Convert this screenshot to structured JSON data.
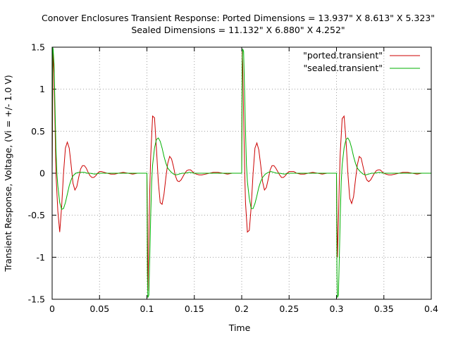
{
  "chart_data": {
    "type": "line",
    "title_line1": "Conover Enclosures Transient Response: Ported Dimensions = 13.937\" X 8.613\" X 5.323\"",
    "title_line2": "Sealed Dimensions = 11.132\" X 6.880\" X 4.252\"",
    "xlabel": "Time",
    "ylabel": "Transient Response, Voltage, (Vi = +/- 1.0 V)",
    "xlim": [
      0,
      0.4
    ],
    "ylim": [
      -1.5,
      1.5
    ],
    "x_tick_labels": [
      "0",
      "0.05",
      "0.1",
      "0.15",
      "0.2",
      "0.25",
      "0.3",
      "0.35",
      "0.4"
    ],
    "x_tick_values": [
      0,
      0.05,
      0.1,
      0.15,
      0.2,
      0.25,
      0.3,
      0.35,
      0.4
    ],
    "y_tick_labels": [
      "1.5",
      "1",
      "0.5",
      "0",
      "-0.5",
      "-1",
      "-1.5"
    ],
    "y_tick_values": [
      1.5,
      1,
      0.5,
      0,
      -0.5,
      -1,
      -1.5
    ],
    "grid": true,
    "legend_position": "top-right",
    "series": [
      {
        "name": "\"ported.transient\"",
        "color": "#cc0000",
        "x": [
          0,
          0.001,
          0.002,
          0.003,
          0.004,
          0.006,
          0.008,
          0.01,
          0.012,
          0.014,
          0.016,
          0.018,
          0.02,
          0.022,
          0.024,
          0.026,
          0.028,
          0.03,
          0.032,
          0.034,
          0.036,
          0.038,
          0.04,
          0.042,
          0.044,
          0.046,
          0.048,
          0.05,
          0.052,
          0.055,
          0.058,
          0.062,
          0.066,
          0.07,
          0.075,
          0.08,
          0.085,
          0.09,
          0.095,
          0.1,
          0.1005,
          0.101,
          0.102,
          0.103,
          0.104,
          0.106,
          0.108,
          0.11,
          0.112,
          0.114,
          0.116,
          0.118,
          0.12,
          0.122,
          0.124,
          0.126,
          0.128,
          0.13,
          0.132,
          0.134,
          0.136,
          0.138,
          0.14,
          0.142,
          0.144,
          0.146,
          0.148,
          0.15,
          0.152,
          0.155,
          0.158,
          0.162,
          0.166,
          0.17,
          0.175,
          0.18,
          0.185,
          0.19,
          0.195,
          0.2,
          0.2005,
          0.201,
          0.202,
          0.203,
          0.204,
          0.206,
          0.208,
          0.21,
          0.212,
          0.214,
          0.216,
          0.218,
          0.22,
          0.222,
          0.224,
          0.226,
          0.228,
          0.23,
          0.232,
          0.234,
          0.236,
          0.238,
          0.24,
          0.242,
          0.244,
          0.246,
          0.248,
          0.25,
          0.252,
          0.255,
          0.258,
          0.262,
          0.266,
          0.27,
          0.275,
          0.28,
          0.285,
          0.29,
          0.295,
          0.3,
          0.3005,
          0.301,
          0.302,
          0.303,
          0.304,
          0.306,
          0.308,
          0.31,
          0.312,
          0.314,
          0.316,
          0.318,
          0.32,
          0.322,
          0.324,
          0.326,
          0.328,
          0.33,
          0.332,
          0.334,
          0.336,
          0.338,
          0.34,
          0.342,
          0.344,
          0.346,
          0.348,
          0.35,
          0.352,
          0.355,
          0.358,
          0.362,
          0.366,
          0.37,
          0.375,
          0.38,
          0.385,
          0.39,
          0.395,
          0.4
        ],
        "y": [
          0,
          1.45,
          1.2,
          0.6,
          0.0,
          -0.45,
          -0.7,
          -0.4,
          0.0,
          0.3,
          0.37,
          0.3,
          0.1,
          -0.12,
          -0.2,
          -0.16,
          -0.05,
          0.05,
          0.09,
          0.09,
          0.06,
          0.01,
          -0.03,
          -0.05,
          -0.05,
          -0.03,
          0.0,
          0.02,
          0.02,
          0.01,
          0.0,
          -0.01,
          -0.01,
          0.0,
          0.01,
          0.0,
          -0.01,
          0.0,
          0.0,
          0.0,
          -0.5,
          -1.4,
          -0.8,
          -0.2,
          0.2,
          0.68,
          0.66,
          0.3,
          -0.1,
          -0.35,
          -0.37,
          -0.25,
          -0.05,
          0.12,
          0.2,
          0.17,
          0.08,
          -0.03,
          -0.09,
          -0.1,
          -0.08,
          -0.04,
          0.0,
          0.03,
          0.04,
          0.04,
          0.02,
          0.0,
          -0.01,
          -0.02,
          -0.02,
          -0.01,
          0.0,
          0.01,
          0.01,
          0.0,
          -0.01,
          0.0,
          0.0,
          0.0,
          1.45,
          1.3,
          0.7,
          0.1,
          -0.35,
          -0.7,
          -0.68,
          -0.4,
          0.0,
          0.3,
          0.36,
          0.28,
          0.1,
          -0.1,
          -0.2,
          -0.17,
          -0.07,
          0.04,
          0.09,
          0.09,
          0.06,
          0.02,
          -0.02,
          -0.05,
          -0.05,
          -0.03,
          0.0,
          0.02,
          0.02,
          0.02,
          0.0,
          -0.01,
          -0.01,
          0.0,
          0.01,
          0.0,
          -0.01,
          0.0,
          0.0,
          0.0,
          -0.5,
          -1.0,
          -0.6,
          -0.1,
          0.25,
          0.65,
          0.68,
          0.4,
          0.0,
          -0.3,
          -0.36,
          -0.28,
          -0.08,
          0.1,
          0.2,
          0.18,
          0.08,
          -0.02,
          -0.08,
          -0.1,
          -0.08,
          -0.04,
          0.0,
          0.03,
          0.04,
          0.04,
          0.02,
          0.0,
          -0.01,
          -0.02,
          -0.02,
          -0.01,
          0.0,
          0.01,
          0.01,
          0.0,
          -0.01,
          0.0,
          0.0,
          0.0
        ]
      },
      {
        "name": "\"sealed.transient\"",
        "color": "#00b000",
        "x": [
          0,
          0.0005,
          0.001,
          0.002,
          0.003,
          0.004,
          0.005,
          0.006,
          0.008,
          0.01,
          0.012,
          0.014,
          0.016,
          0.018,
          0.02,
          0.022,
          0.025,
          0.028,
          0.031,
          0.034,
          0.037,
          0.04,
          0.045,
          0.05,
          0.055,
          0.06,
          0.065,
          0.07,
          0.08,
          0.09,
          0.1,
          0.1005,
          0.101,
          0.102,
          0.103,
          0.104,
          0.105,
          0.106,
          0.108,
          0.11,
          0.112,
          0.114,
          0.116,
          0.118,
          0.12,
          0.122,
          0.125,
          0.128,
          0.131,
          0.134,
          0.137,
          0.14,
          0.145,
          0.15,
          0.155,
          0.16,
          0.165,
          0.17,
          0.18,
          0.19,
          0.2,
          0.2005,
          0.201,
          0.202,
          0.203,
          0.204,
          0.205,
          0.206,
          0.208,
          0.21,
          0.212,
          0.214,
          0.216,
          0.218,
          0.22,
          0.222,
          0.225,
          0.228,
          0.231,
          0.234,
          0.237,
          0.24,
          0.245,
          0.25,
          0.255,
          0.26,
          0.265,
          0.27,
          0.28,
          0.29,
          0.3,
          0.3005,
          0.301,
          0.302,
          0.303,
          0.304,
          0.305,
          0.306,
          0.308,
          0.31,
          0.312,
          0.314,
          0.316,
          0.318,
          0.32,
          0.322,
          0.325,
          0.328,
          0.331,
          0.334,
          0.337,
          0.34,
          0.345,
          0.35,
          0.355,
          0.36,
          0.365,
          0.37,
          0.38,
          0.39,
          0.4
        ],
        "y": [
          0,
          1.5,
          1.48,
          1.3,
          0.8,
          0.3,
          0.0,
          -0.15,
          -0.35,
          -0.43,
          -0.42,
          -0.35,
          -0.25,
          -0.15,
          -0.08,
          -0.03,
          0.0,
          0.01,
          0.01,
          0.01,
          0.0,
          0.0,
          -0.01,
          0.0,
          0.0,
          0.0,
          0.0,
          0.0,
          0.0,
          0.0,
          0.0,
          -1.2,
          -1.48,
          -1.45,
          -1.0,
          -0.5,
          -0.1,
          0.1,
          0.3,
          0.4,
          0.42,
          0.38,
          0.3,
          0.2,
          0.12,
          0.06,
          0.02,
          -0.01,
          -0.02,
          -0.01,
          0.0,
          0.0,
          0.01,
          0.0,
          0.0,
          0.0,
          0.0,
          0.0,
          0.0,
          0.0,
          0.0,
          1.3,
          1.48,
          1.45,
          1.0,
          0.5,
          0.1,
          -0.1,
          -0.3,
          -0.42,
          -0.42,
          -0.36,
          -0.27,
          -0.17,
          -0.1,
          -0.05,
          -0.01,
          0.01,
          0.02,
          0.01,
          0.0,
          0.0,
          -0.01,
          0.0,
          0.0,
          0.0,
          0.0,
          0.0,
          0.0,
          0.0,
          0.0,
          -1.2,
          -1.48,
          -1.45,
          -1.0,
          -0.5,
          -0.1,
          0.1,
          0.3,
          0.4,
          0.42,
          0.38,
          0.3,
          0.2,
          0.12,
          0.06,
          0.02,
          -0.01,
          -0.02,
          -0.01,
          0.0,
          0.0,
          0.01,
          0.0,
          0.0,
          0.0,
          0.0,
          0.0,
          0.0,
          0.0,
          0.0
        ]
      }
    ]
  }
}
